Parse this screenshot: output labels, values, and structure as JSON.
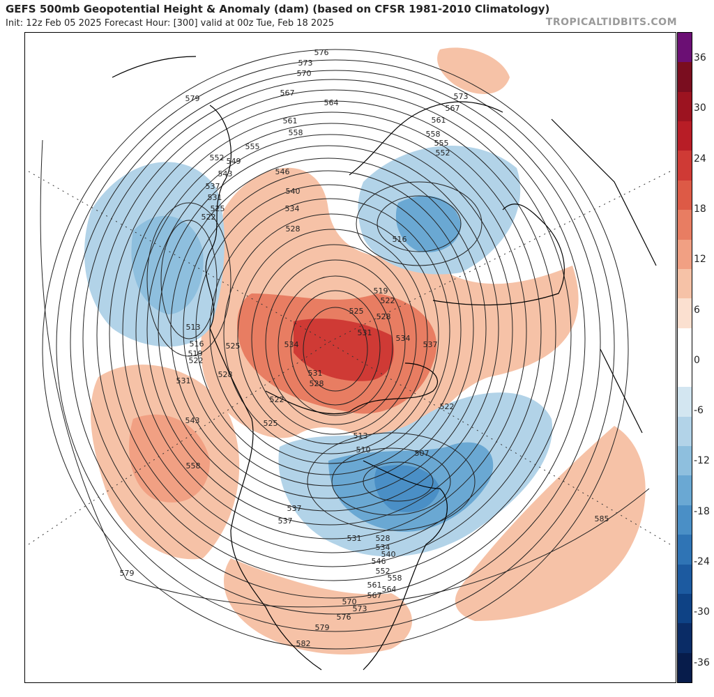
{
  "header": {
    "title": "GEFS 500mb Geopotential Height & Anomaly (dam) (based on CFSR 1981-2010 Climatology)",
    "subtitle": "Init: 12z Feb 05 2025   Forecast Hour: [300]   valid at 00z Tue, Feb 18 2025",
    "credit": "TROPICALTIDBITS.COM"
  },
  "colorbar": {
    "tick_labels": [
      "36",
      "30",
      "24",
      "18",
      "12",
      "6",
      "0",
      "-6",
      "-12",
      "-18",
      "-24",
      "-30",
      "-36"
    ],
    "colors": [
      "#6b0f74",
      "#7a0d1f",
      "#9c1320",
      "#b81d26",
      "#cf3a35",
      "#dd5a46",
      "#e87d62",
      "#f1a083",
      "#f6c2a7",
      "#fbe0d0",
      "#ffffff",
      "#ffffff",
      "#d3e6f1",
      "#b2d3e8",
      "#8ebfde",
      "#6aa8d3",
      "#4a8fc6",
      "#2f74b5",
      "#1c5aa0",
      "#0e4285",
      "#0a2c66",
      "#071c4b"
    ]
  },
  "contours": {
    "labels": [
      "576",
      "573",
      "570",
      "567",
      "564",
      "561",
      "558",
      "555",
      "552",
      "549",
      "546",
      "543",
      "540",
      "537",
      "534",
      "531",
      "528",
      "525",
      "522",
      "519",
      "516",
      "513",
      "510",
      "507",
      "585",
      "582",
      "579",
      "573",
      "567",
      "561",
      "558",
      "555",
      "552"
    ]
  },
  "map_labels": [
    {
      "text": "576"
    },
    {
      "text": "573"
    },
    {
      "text": "570"
    },
    {
      "text": "567"
    },
    {
      "text": "564"
    },
    {
      "text": "561"
    },
    {
      "text": "558"
    },
    {
      "text": "555"
    },
    {
      "text": "552"
    },
    {
      "text": "549"
    },
    {
      "text": "546"
    },
    {
      "text": "543"
    },
    {
      "text": "540"
    },
    {
      "text": "537"
    },
    {
      "text": "534"
    },
    {
      "text": "531"
    },
    {
      "text": "528"
    },
    {
      "text": "525"
    },
    {
      "text": "522"
    },
    {
      "text": "579"
    },
    {
      "text": "516"
    },
    {
      "text": "519"
    },
    {
      "text": "522"
    },
    {
      "text": "525"
    },
    {
      "text": "528"
    },
    {
      "text": "531"
    },
    {
      "text": "534"
    },
    {
      "text": "537"
    },
    {
      "text": "573"
    },
    {
      "text": "567"
    },
    {
      "text": "561"
    },
    {
      "text": "558"
    },
    {
      "text": "555"
    },
    {
      "text": "552"
    },
    {
      "text": "513"
    },
    {
      "text": "516"
    },
    {
      "text": "519"
    },
    {
      "text": "522"
    },
    {
      "text": "531"
    },
    {
      "text": "528"
    },
    {
      "text": "525"
    },
    {
      "text": "534"
    },
    {
      "text": "531"
    },
    {
      "text": "528"
    },
    {
      "text": "522"
    },
    {
      "text": "525"
    },
    {
      "text": "543"
    },
    {
      "text": "558"
    },
    {
      "text": "537"
    },
    {
      "text": "507"
    },
    {
      "text": "522"
    },
    {
      "text": "510"
    },
    {
      "text": "513"
    },
    {
      "text": "531"
    },
    {
      "text": "528"
    },
    {
      "text": "534"
    },
    {
      "text": "540"
    },
    {
      "text": "546"
    },
    {
      "text": "552"
    },
    {
      "text": "558"
    },
    {
      "text": "561"
    },
    {
      "text": "564"
    },
    {
      "text": "567"
    },
    {
      "text": "570"
    },
    {
      "text": "573"
    },
    {
      "text": "576"
    },
    {
      "text": "579"
    },
    {
      "text": "582"
    },
    {
      "text": "579"
    },
    {
      "text": "585"
    },
    {
      "text": "537"
    }
  ]
}
